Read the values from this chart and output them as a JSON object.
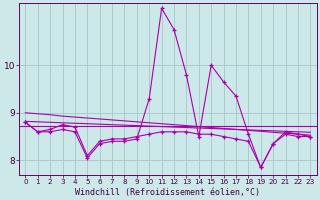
{
  "xlabel": "Windchill (Refroidissement éolien,°C)",
  "bg_color": "#cce8e8",
  "grid_color": "#aacccc",
  "line_color": "#aa00aa",
  "x": [
    0,
    1,
    2,
    3,
    4,
    5,
    6,
    7,
    8,
    9,
    10,
    11,
    12,
    13,
    14,
    15,
    16,
    17,
    18,
    19,
    20,
    21,
    22,
    23
  ],
  "series_spike": [
    8.8,
    8.6,
    8.6,
    8.65,
    8.6,
    8.05,
    8.35,
    8.4,
    8.4,
    8.45,
    9.3,
    11.2,
    10.75,
    9.8,
    8.5,
    10.0,
    9.65,
    9.35,
    8.55,
    7.85,
    8.35,
    8.6,
    8.55,
    8.5
  ],
  "series_low": [
    8.8,
    8.6,
    8.65,
    8.75,
    8.7,
    8.1,
    8.4,
    8.45,
    8.45,
    8.5,
    8.55,
    8.6,
    8.6,
    8.6,
    8.55,
    8.55,
    8.5,
    8.45,
    8.4,
    7.85,
    8.35,
    8.55,
    8.5,
    8.5
  ],
  "trend_high": [
    9.0,
    8.98,
    8.96,
    8.93,
    8.91,
    8.89,
    8.87,
    8.85,
    8.83,
    8.81,
    8.79,
    8.77,
    8.75,
    8.73,
    8.71,
    8.69,
    8.67,
    8.65,
    8.63,
    8.61,
    8.59,
    8.57,
    8.55,
    8.53
  ],
  "trend_low": [
    8.82,
    8.81,
    8.8,
    8.79,
    8.78,
    8.77,
    8.76,
    8.75,
    8.74,
    8.73,
    8.72,
    8.71,
    8.7,
    8.69,
    8.68,
    8.67,
    8.66,
    8.65,
    8.64,
    8.63,
    8.62,
    8.61,
    8.6,
    8.59
  ],
  "flat_line_y": 8.72,
  "ylim": [
    7.7,
    11.3
  ],
  "yticks": [
    8,
    9,
    10
  ],
  "xlim": [
    -0.5,
    23.5
  ]
}
